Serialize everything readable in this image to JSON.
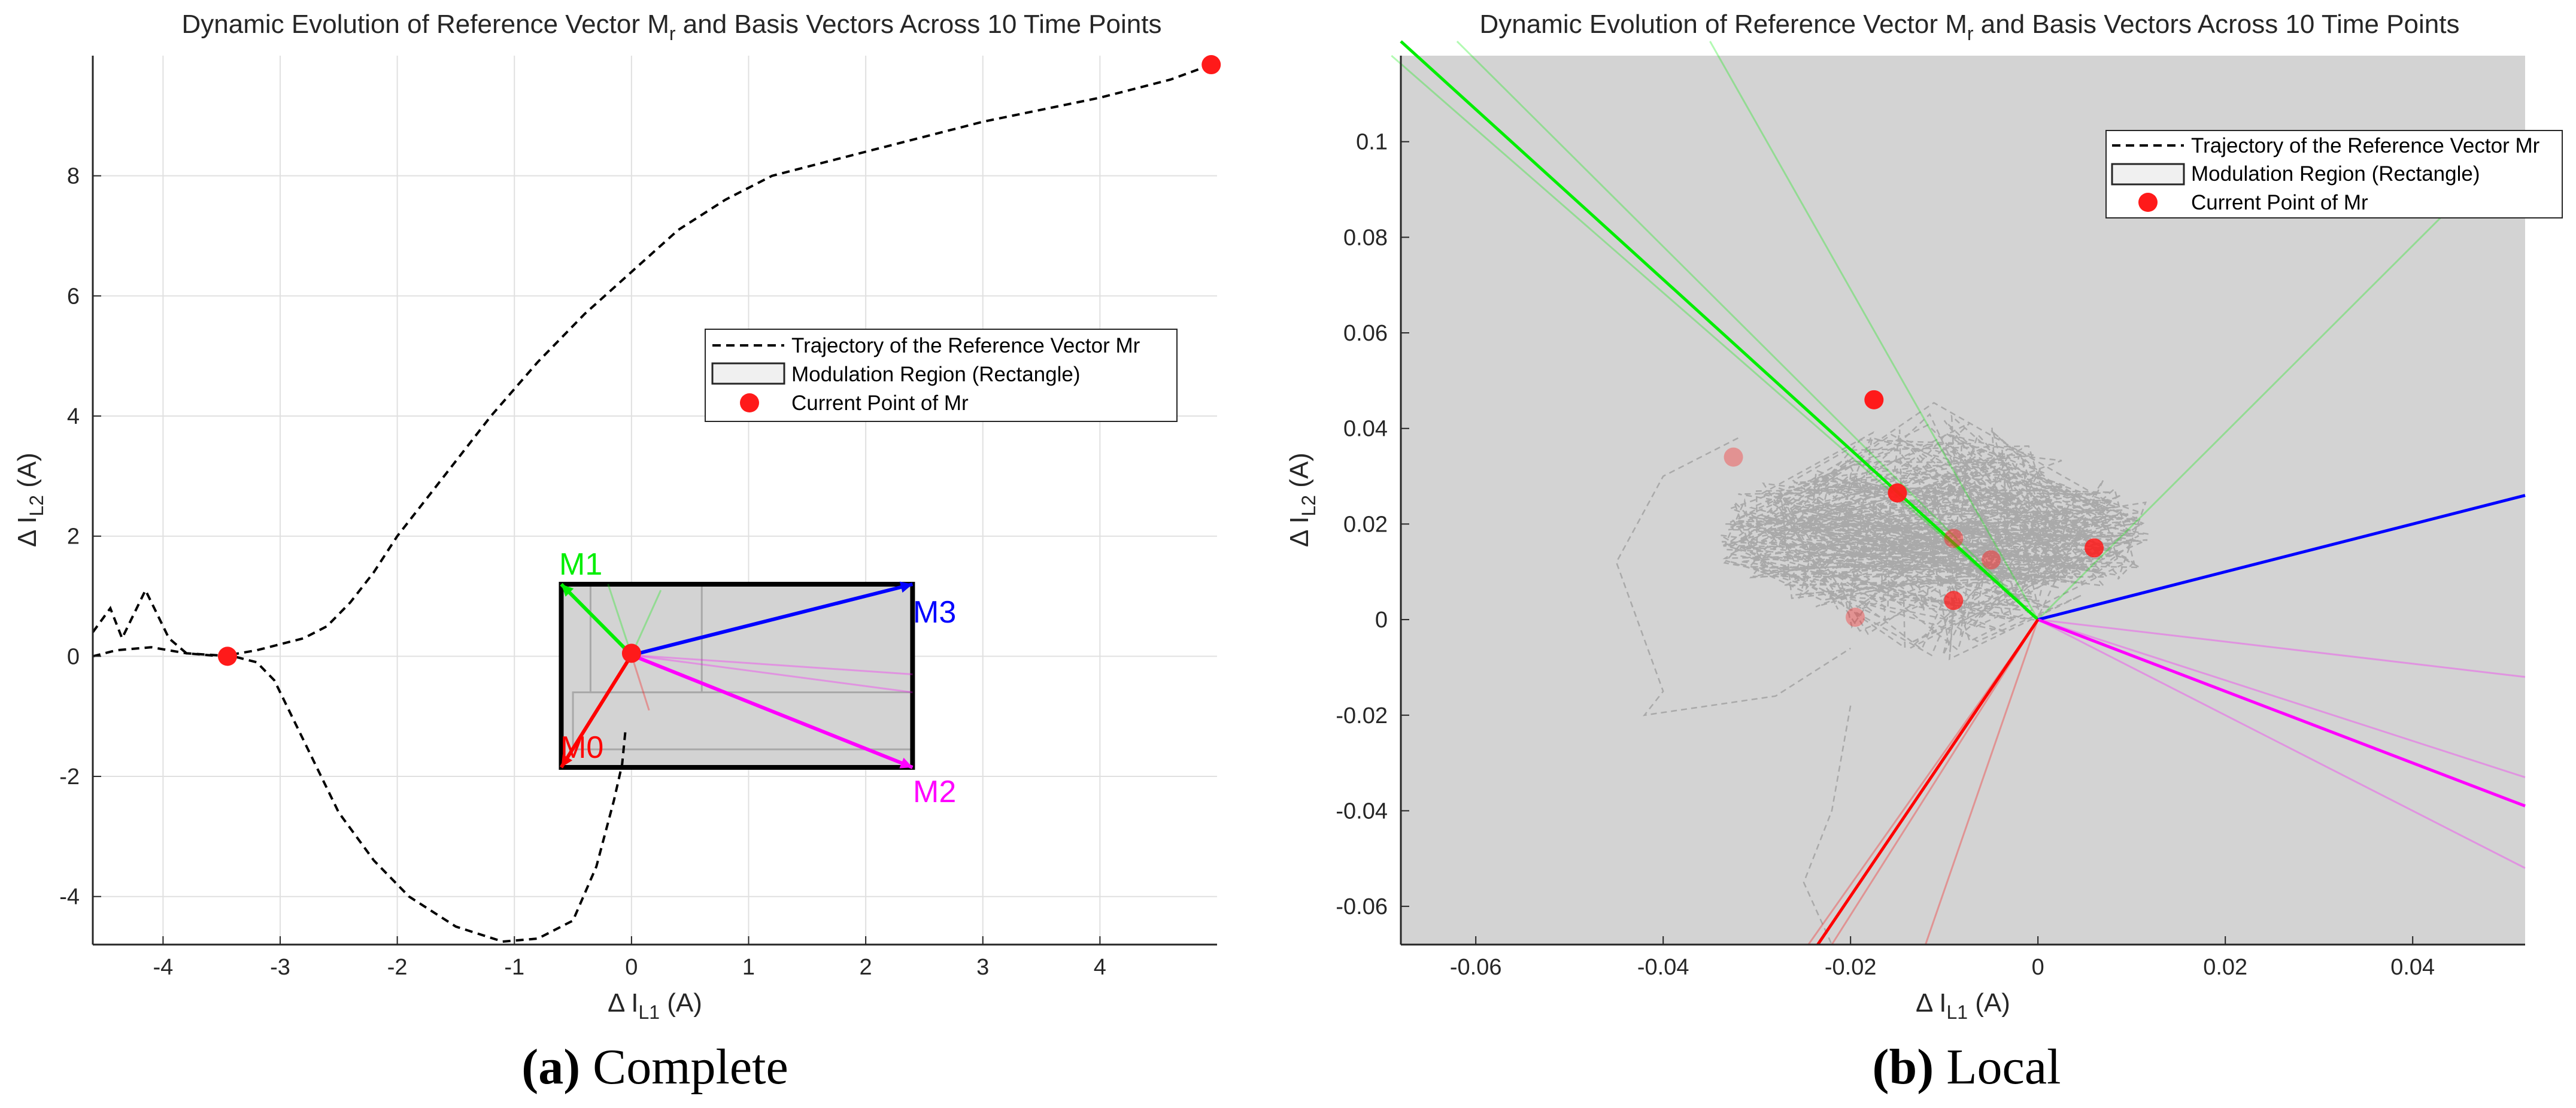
{
  "colors": {
    "m0": "#ff0000",
    "m1": "#00ee00",
    "m2": "#ff00ff",
    "m3": "#0000ff",
    "point": "#ff1a1a",
    "trajectory": "#000000",
    "grid": "#e0e0e0",
    "local_bg": "#d3d3d3"
  },
  "chart_data": [
    {
      "type": "line",
      "title": "Dynamic Evolution of Reference Vector M",
      "title_sub": "r",
      "title_rest": " and Basis Vectors Across 10 Time Points",
      "xlabel": "Δ I",
      "xlabel_sub": "L1",
      "xlabel_unit": " (A)",
      "ylabel": "Δ I",
      "ylabel_sub": "L2",
      "ylabel_unit": " (A)",
      "xlim": [
        -4.6,
        5.0
      ],
      "ylim": [
        -4.8,
        10.0
      ],
      "xticks": [
        -4,
        -3,
        -2,
        -1,
        0,
        1,
        2,
        3,
        4
      ],
      "yticks": [
        -4,
        -2,
        0,
        2,
        4,
        6,
        8
      ],
      "grid": true,
      "caption_bold": "(a)",
      "caption_text": " Complete",
      "legend": {
        "position": "right-middle",
        "entries": [
          "Trajectory of the Reference Vector Mr",
          "Modulation Region (Rectangle)",
          "Current Point of Mr"
        ]
      },
      "trajectory": {
        "x": [
          -4.6,
          -4.45,
          -4.35,
          -4.25,
          -4.15,
          -4.05,
          -3.95,
          -3.8,
          -3.5,
          -3.2,
          -3.0,
          -2.8,
          -2.6,
          -2.4,
          -2.2,
          -2.0,
          -1.6,
          -1.2,
          -0.8,
          -0.4,
          0,
          0.4,
          0.8,
          1.2,
          2.0,
          3.0,
          4.0,
          4.6,
          4.95
        ],
        "y": [
          0.4,
          0.8,
          0.3,
          0.7,
          1.1,
          0.7,
          0.3,
          0.05,
          0.0,
          0.1,
          0.2,
          0.3,
          0.5,
          0.9,
          1.4,
          2.0,
          3.0,
          4.0,
          4.9,
          5.7,
          6.4,
          7.1,
          7.6,
          8.0,
          8.4,
          8.9,
          9.3,
          9.6,
          9.85
        ]
      },
      "trajectory2": {
        "x": [
          -4.6,
          -4.4,
          -4.1,
          -3.8,
          -3.4,
          -3.2,
          -3.05,
          -2.9,
          -2.7,
          -2.5,
          -2.2,
          -1.9,
          -1.5,
          -1.1,
          -0.8,
          -0.5,
          -0.3,
          -0.15,
          -0.08,
          -0.05
        ],
        "y": [
          0.0,
          0.1,
          0.15,
          0.05,
          0.0,
          -0.1,
          -0.4,
          -1.0,
          -1.8,
          -2.6,
          -3.4,
          -4.0,
          -4.5,
          -4.75,
          -4.7,
          -4.4,
          -3.5,
          -2.4,
          -1.8,
          -1.2
        ]
      },
      "region": {
        "x": [
          -0.6,
          2.4
        ],
        "y": [
          -1.85,
          1.2
        ]
      },
      "inner_rects": [
        {
          "x": [
            -0.35,
            0.6
          ],
          "y": [
            -0.6,
            1.2
          ]
        },
        {
          "x": [
            -0.5,
            2.4
          ],
          "y": [
            -1.55,
            -0.6
          ]
        }
      ],
      "vectors": [
        {
          "label": "M0",
          "end": [
            -0.6,
            -1.85
          ]
        },
        {
          "label": "M1",
          "end": [
            -0.6,
            1.2
          ]
        },
        {
          "label": "M2",
          "end": [
            2.4,
            -1.85
          ]
        },
        {
          "label": "M3",
          "end": [
            2.4,
            1.2
          ]
        }
      ],
      "faint_vectors": [
        {
          "end": [
            2.4,
            -0.6
          ],
          "color": "m2"
        },
        {
          "end": [
            2.4,
            -0.3
          ],
          "color": "m2"
        },
        {
          "end": [
            -0.2,
            1.2
          ],
          "color": "m1"
        },
        {
          "end": [
            0.25,
            1.1
          ],
          "color": "m1"
        },
        {
          "end": [
            0.15,
            -0.9
          ],
          "color": "m0"
        }
      ],
      "points": [
        {
          "x": -3.45,
          "y": 0.0
        },
        {
          "x": 0.0,
          "y": 0.05
        },
        {
          "x": 4.95,
          "y": 9.85
        }
      ]
    },
    {
      "type": "line",
      "title": "Dynamic Evolution of Reference Vector M",
      "title_sub": "r",
      "title_rest": " and Basis Vectors Across 10 Time Points",
      "xlabel": "Δ I",
      "xlabel_sub": "L1",
      "xlabel_unit": " (A)",
      "ylabel": "Δ I",
      "ylabel_sub": "L2",
      "ylabel_unit": " (A)",
      "xlim": [
        -0.068,
        0.052
      ],
      "ylim": [
        -0.068,
        0.118
      ],
      "xticks": [
        -0.06,
        -0.04,
        -0.02,
        0,
        0.02,
        0.04
      ],
      "xticklabels": [
        "-0.06",
        "-0.04",
        "-0.02",
        "0",
        "0.02",
        "0.04"
      ],
      "yticks": [
        -0.06,
        -0.04,
        -0.02,
        0,
        0.02,
        0.04,
        0.06,
        0.08,
        0.1
      ],
      "yticklabels": [
        "-0.06",
        "-0.04",
        "-0.02",
        "0",
        "0.02",
        "0.04",
        "0.06",
        "0.08",
        "0.1"
      ],
      "grid": false,
      "caption_bold": "(b)",
      "caption_text": " Local",
      "legend": {
        "position": "top-right",
        "entries": [
          "Trajectory of the Reference Vector Mr",
          "Modulation Region (Rectangle)",
          "Current Point of Mr"
        ]
      },
      "vectors": [
        {
          "label": "M1",
          "end": [
            -0.068,
            0.121
          ],
          "color": "m1"
        },
        {
          "label": "M3",
          "end": [
            0.052,
            0.026
          ],
          "color": "m3"
        },
        {
          "label": "M2",
          "end": [
            0.052,
            -0.039
          ],
          "color": "m2"
        },
        {
          "label": "M0",
          "end": [
            -0.0235,
            -0.068
          ],
          "color": "m0"
        }
      ],
      "faint_vectors": [
        {
          "end": [
            -0.062,
            0.121
          ],
          "color": "m1"
        },
        {
          "end": [
            -0.069,
            0.118
          ],
          "color": "m1"
        },
        {
          "end": [
            -0.035,
            0.121
          ],
          "color": "m1"
        },
        {
          "end": [
            0.046,
            0.09
          ],
          "color": "m1"
        },
        {
          "end": [
            0.052,
            -0.012
          ],
          "color": "m2"
        },
        {
          "end": [
            0.052,
            -0.033
          ],
          "color": "m2"
        },
        {
          "end": [
            0.052,
            -0.052
          ],
          "color": "m2"
        },
        {
          "end": [
            -0.022,
            -0.068
          ],
          "color": "m0"
        },
        {
          "end": [
            -0.012,
            -0.068
          ],
          "color": "m0"
        },
        {
          "end": [
            -0.0245,
            -0.068
          ],
          "color": "m0"
        }
      ],
      "points": [
        {
          "x": -0.0175,
          "y": 0.046,
          "alpha": 1.0
        },
        {
          "x": -0.015,
          "y": 0.0265,
          "alpha": 0.95
        },
        {
          "x": 0.006,
          "y": 0.015,
          "alpha": 0.85
        },
        {
          "x": -0.0325,
          "y": 0.034,
          "alpha": 0.35
        },
        {
          "x": -0.009,
          "y": 0.017,
          "alpha": 0.45
        },
        {
          "x": -0.005,
          "y": 0.0125,
          "alpha": 0.45
        },
        {
          "x": -0.009,
          "y": 0.004,
          "alpha": 0.75
        },
        {
          "x": -0.0195,
          "y": 0.0005,
          "alpha": 0.35
        }
      ]
    }
  ]
}
